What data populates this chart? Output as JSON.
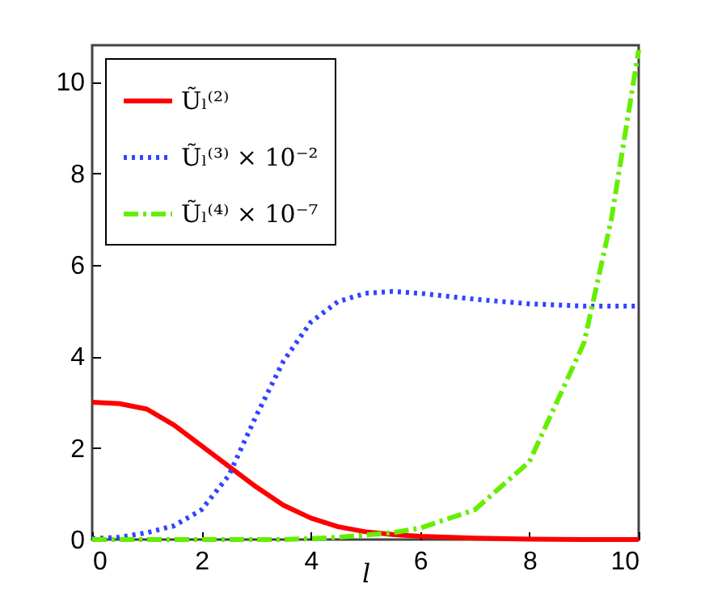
{
  "chart_data": {
    "type": "line",
    "xlabel": "l",
    "x": [
      0,
      0.5,
      1,
      1.5,
      2,
      2.5,
      3,
      3.5,
      4,
      4.5,
      5,
      5.5,
      6,
      7,
      8,
      9,
      9.5,
      10
    ],
    "series": [
      {
        "name": "Ũₗ⁽²⁾",
        "color": "#ff0000",
        "line_style": "solid",
        "values": [
          3,
          2.97,
          2.85,
          2.5,
          2.05,
          1.6,
          1.15,
          0.75,
          0.47,
          0.28,
          0.17,
          0.11,
          0.07,
          0.03,
          0.01,
          0,
          0,
          0
        ]
      },
      {
        "name": "Ũₗ⁽³⁾ × 10⁻²",
        "color": "#3344ff",
        "line_style": "dotted",
        "values": [
          0.02,
          0.05,
          0.15,
          0.3,
          0.65,
          1.4,
          2.7,
          3.9,
          4.75,
          5.2,
          5.38,
          5.42,
          5.38,
          5.25,
          5.15,
          5.1,
          5.1,
          5.1
        ]
      },
      {
        "name": "Ũₗ⁽⁴⁾ × 10⁻⁷",
        "color": "#66ee00",
        "line_style": "dashed",
        "values": [
          0,
          0,
          0,
          0,
          0,
          0,
          0,
          0,
          0.02,
          0.05,
          0.1,
          0.15,
          0.25,
          0.65,
          1.7,
          4.3,
          7.0,
          10.7
        ]
      }
    ],
    "xlim": [
      0,
      10
    ],
    "ylim": [
      0,
      10.8
    ],
    "xticks": [
      0,
      2,
      4,
      6,
      8,
      10
    ],
    "yticks": [
      0,
      2,
      4,
      6,
      8,
      10
    ],
    "grid": false,
    "legend": "top left",
    "marker": "none"
  }
}
